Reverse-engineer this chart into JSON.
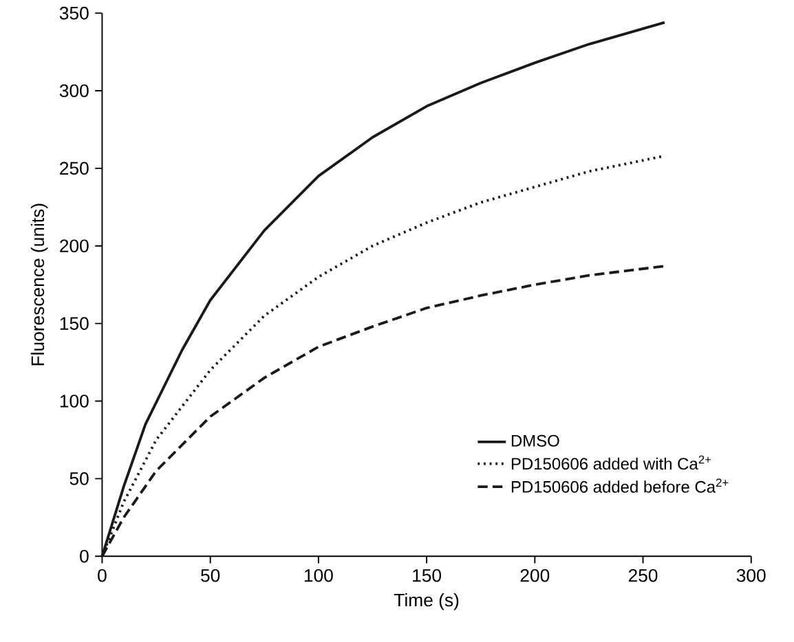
{
  "chart_data": {
    "type": "line",
    "xlabel": "Time (s)",
    "ylabel": "Fluorescence (units)",
    "xlim": [
      0,
      300
    ],
    "xticks": [
      0,
      50,
      100,
      150,
      200,
      250,
      300
    ],
    "ylim": [
      0,
      350
    ],
    "yticks": [
      0,
      50,
      100,
      150,
      200,
      250,
      300,
      350
    ],
    "grid": false,
    "legend": "bottom right",
    "marker": "none",
    "series": [
      {
        "name": "DMSO",
        "color": "#1a1a1a",
        "line_style": "solid",
        "x": [
          0,
          10,
          20,
          37,
          50,
          75,
          100,
          125,
          150,
          175,
          200,
          225,
          260
        ],
        "values": [
          0,
          45,
          85,
          133,
          165,
          210,
          245,
          270,
          290,
          305,
          318,
          330,
          344
        ]
      },
      {
        "name": "PD150606 added with Ca$^{2+}$",
        "color": "#1a1a1a",
        "line_style": "dotted",
        "x": [
          0,
          10,
          25,
          50,
          75,
          100,
          125,
          150,
          175,
          200,
          225,
          260
        ],
        "values": [
          0,
          35,
          75,
          120,
          155,
          180,
          200,
          215,
          228,
          238,
          248,
          258
        ]
      },
      {
        "name": "PD150606 added before Ca$^{2+}$",
        "color": "#1a1a1a",
        "line_style": "dashed",
        "x": [
          0,
          10,
          25,
          50,
          75,
          100,
          125,
          150,
          175,
          200,
          225,
          260
        ],
        "values": [
          0,
          25,
          55,
          90,
          115,
          135,
          148,
          160,
          168,
          175,
          181,
          187
        ]
      }
    ]
  }
}
